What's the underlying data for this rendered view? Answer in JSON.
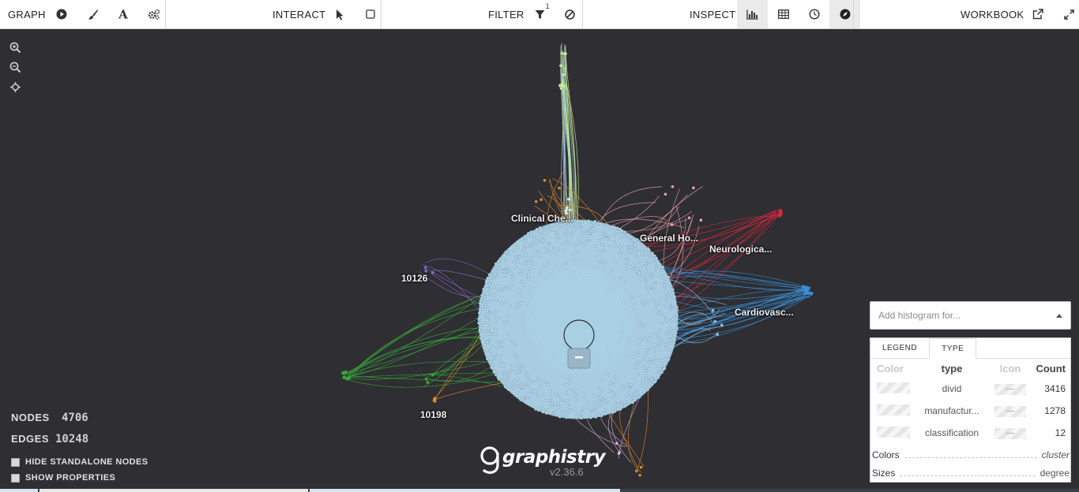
{
  "toolbar": {
    "graph_label": "GRAPH",
    "interact_label": "INTERACT",
    "filter_label": "FILTER",
    "filter_badge": "1",
    "inspect_label": "INSPECT",
    "workbook_label": "WORKBOOK",
    "icons": {
      "graph": [
        "play-icon",
        "brush-icon",
        "font-icon",
        "gears-icon"
      ],
      "interact": [
        "pointer-icon",
        "box-select-icon"
      ],
      "filter": [
        "filter-icon",
        "exclude-icon"
      ],
      "inspect": [
        "histogram-icon",
        "table-icon",
        "timebar-icon",
        "compass-icon"
      ],
      "workbook": [
        "external-link-icon",
        "fullscreen-icon"
      ]
    }
  },
  "canvas": {
    "background": "#2e2e33",
    "zoom_controls": [
      "zoom-in-icon",
      "zoom-out-icon",
      "center-icon"
    ],
    "labels": {
      "clinical": "Clinical Che...",
      "general": "General Ho...",
      "neuro": "Neurologica...",
      "cardio": "Cardiovasc...",
      "n10126": "10126",
      "n10198": "10198"
    },
    "cluster_colors": {
      "main": "#a8cde0",
      "yellow_green": "#c5e89a",
      "orange": "#e08a2a",
      "pink": "#e8a3a8",
      "red": "#d8283a",
      "blue": "#3a8fd8",
      "purple": "#8a6bc8",
      "green": "#3aa83a"
    }
  },
  "stats": {
    "nodes_label": "NODES",
    "nodes_value": "4706",
    "edges_label": "EDGES",
    "edges_value": "10248",
    "hide_standalone": "HIDE STANDALONE NODES",
    "show_properties": "SHOW PROPERTIES"
  },
  "logo": {
    "wordmark": "graphistry",
    "version": "v2.36.6"
  },
  "histogram": {
    "placeholder": "Add histogram for..."
  },
  "legend": {
    "tabs": [
      "LEGEND",
      "TYPE"
    ],
    "columns": [
      "Color",
      "type",
      "Icon",
      "Count"
    ],
    "rows": [
      {
        "type": "divid",
        "icon": "—",
        "count": "3416"
      },
      {
        "type": "manufactur...",
        "icon": "—",
        "count": "1278"
      },
      {
        "type": "classification",
        "icon": "—",
        "count": "12"
      }
    ],
    "colors_label": "Colors",
    "colors_value": "cluster",
    "sizes_label": "Sizes",
    "sizes_value": "degree"
  }
}
